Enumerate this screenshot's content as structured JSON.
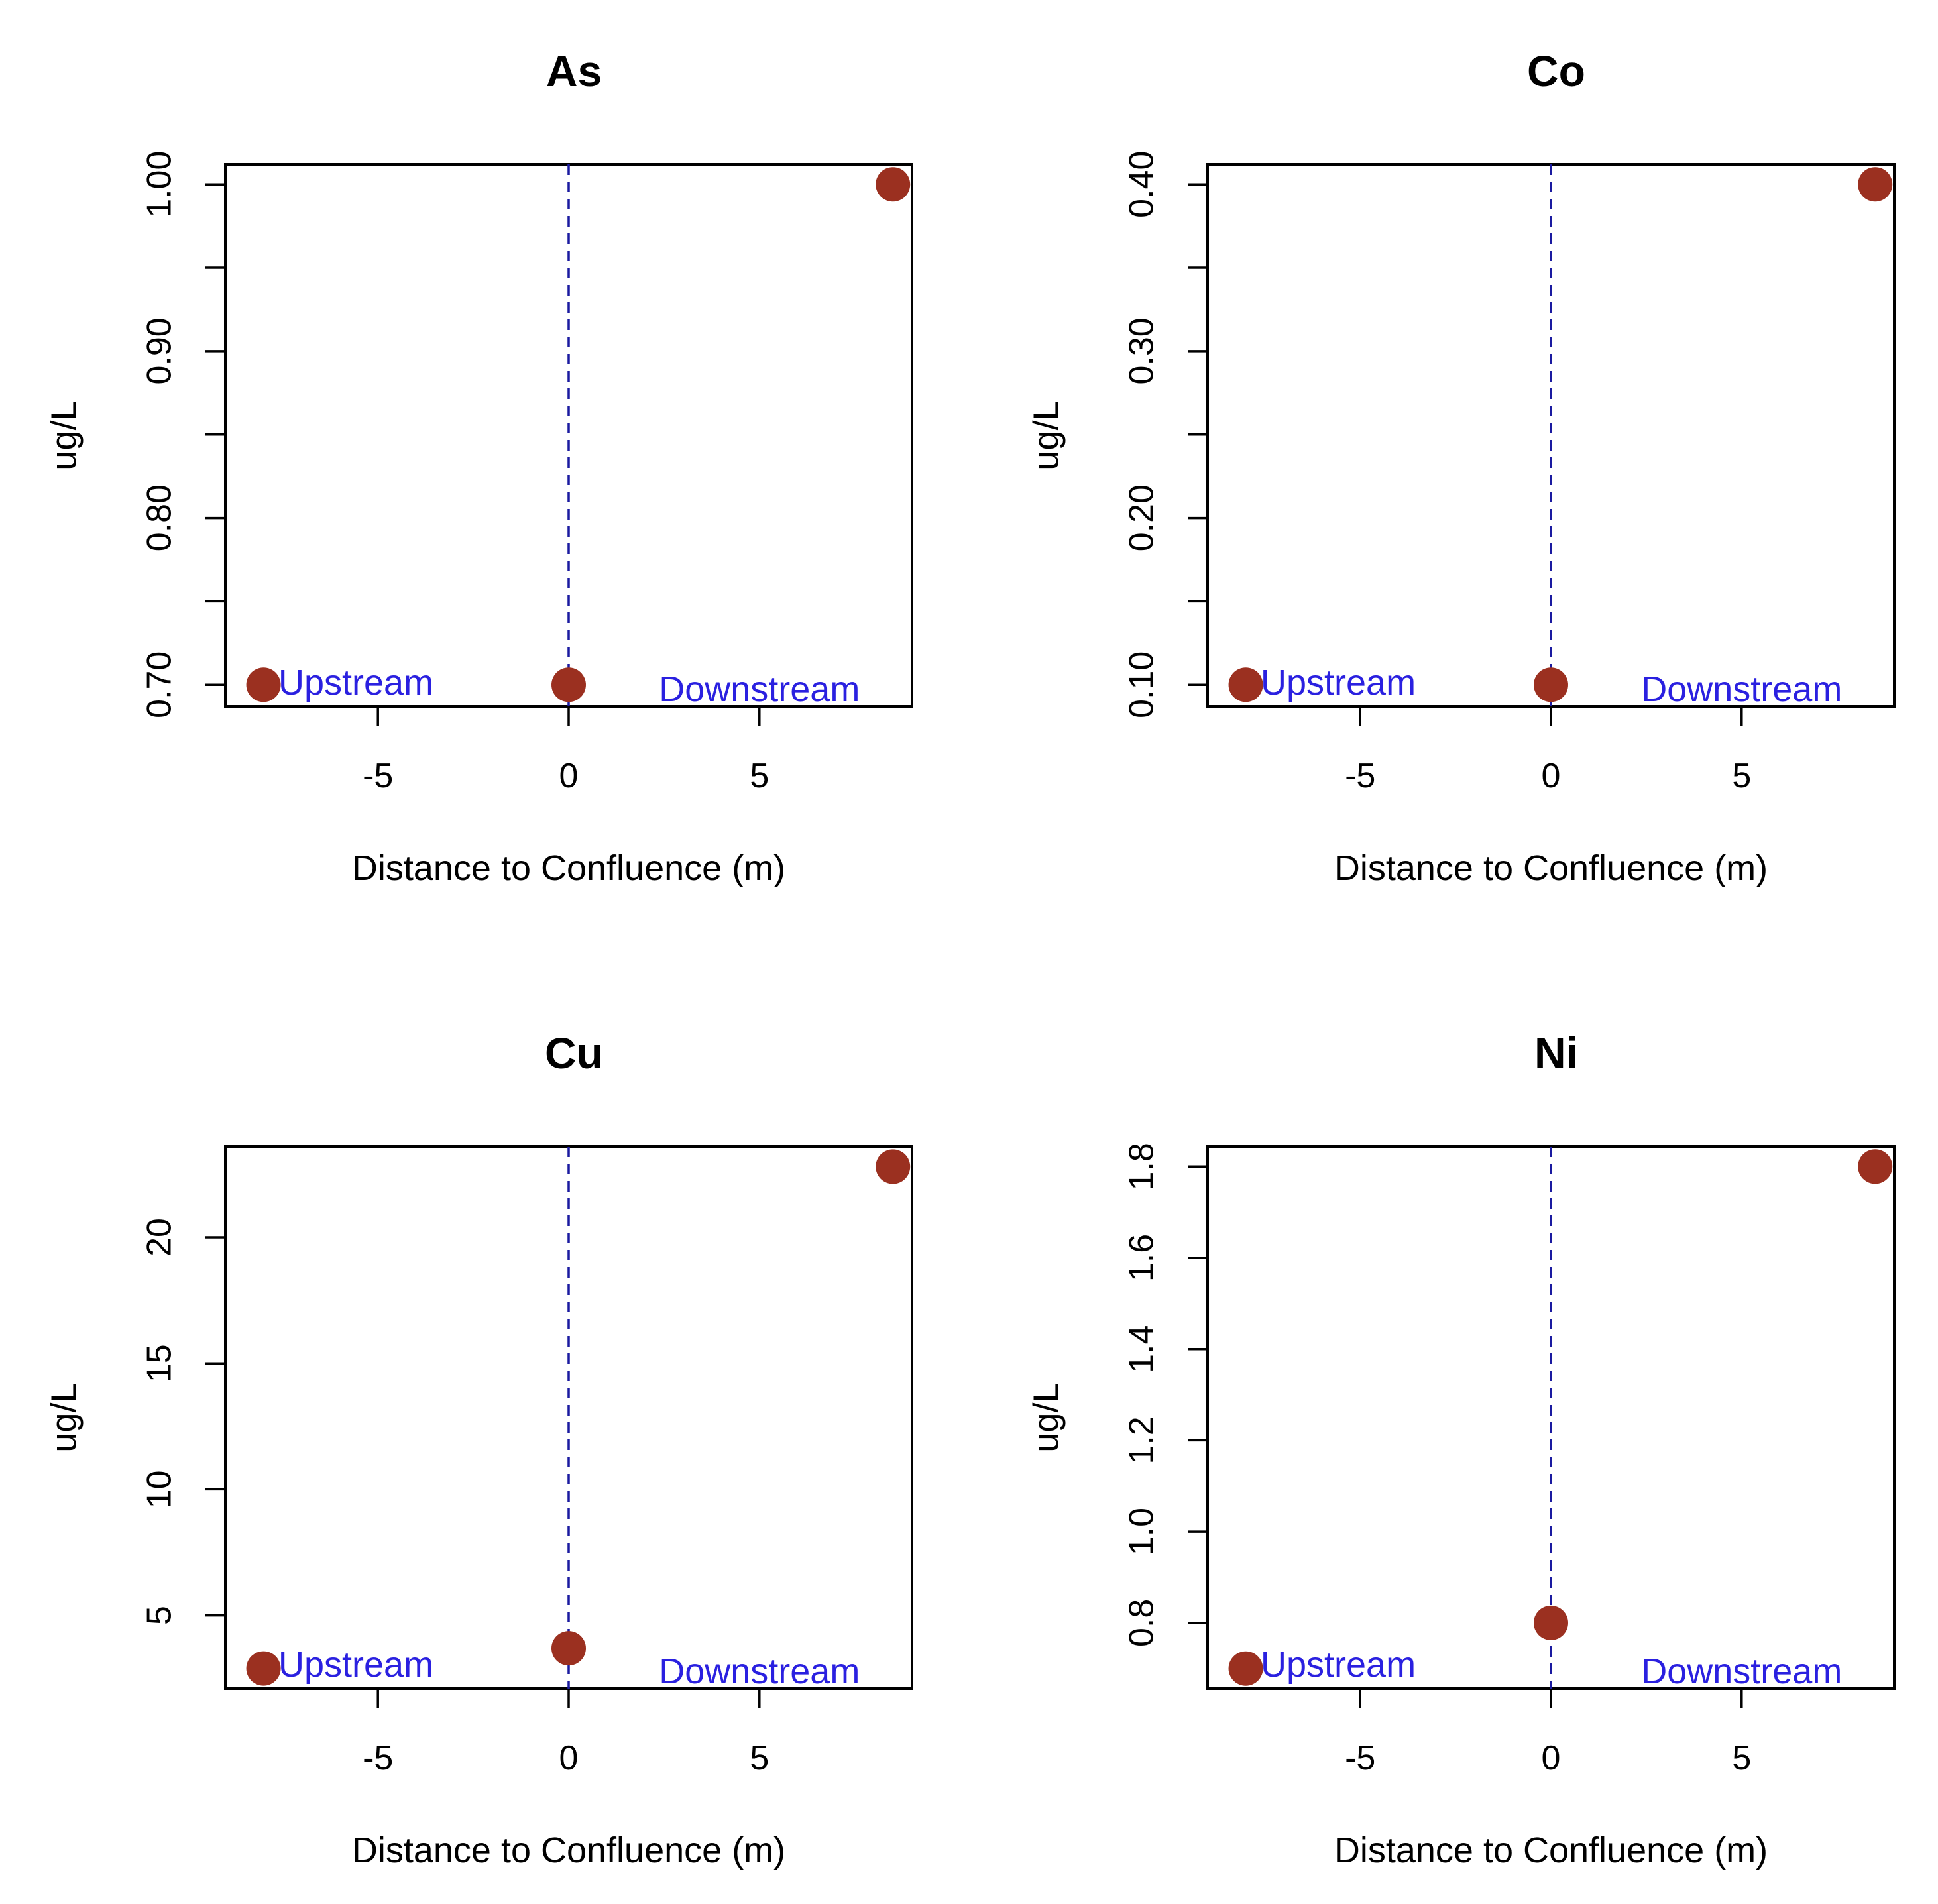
{
  "chart_data": [
    {
      "type": "scatter",
      "title": "As",
      "xlabel": "Distance to Confluence (m)",
      "ylabel": "ug/L",
      "xlim": [
        -9,
        9
      ],
      "ylim": [
        0.687,
        1.012
      ],
      "x_ticks": [
        "-5",
        "0",
        "5"
      ],
      "y_ticks": [
        "0.70",
        "0.80",
        "0.90",
        "1.00"
      ],
      "y_tick_values": [
        0.7,
        0.8,
        0.9,
        1.0
      ],
      "y_minor_ticks": [
        0.75,
        0.85,
        0.95
      ],
      "x": [
        -8,
        0,
        8.5
      ],
      "y": [
        0.7,
        0.7,
        1.0
      ],
      "confluence_line_x": 0,
      "annotations": {
        "upstream": "Upstream",
        "downstream": "Downstream"
      },
      "point_color": "#9b3020",
      "line_color": "#1a1aa0",
      "annotation_color": "#2a20e0"
    },
    {
      "type": "scatter",
      "title": "Co",
      "xlabel": "Distance to Confluence (m)",
      "ylabel": "ug/L",
      "xlim": [
        -9,
        9
      ],
      "ylim": [
        0.087,
        0.412
      ],
      "x_ticks": [
        "-5",
        "0",
        "5"
      ],
      "y_ticks": [
        "0.10",
        "0.20",
        "0.30",
        "0.40"
      ],
      "y_tick_values": [
        0.1,
        0.2,
        0.3,
        0.4
      ],
      "y_minor_ticks": [
        0.15,
        0.25,
        0.35
      ],
      "x": [
        -8,
        0,
        8.5
      ],
      "y": [
        0.1,
        0.1,
        0.4
      ],
      "confluence_line_x": 0,
      "annotations": {
        "upstream": "Upstream",
        "downstream": "Downstream"
      },
      "point_color": "#9b3020",
      "line_color": "#1a1aa0",
      "annotation_color": "#2a20e0"
    },
    {
      "type": "scatter",
      "title": "Cu",
      "xlabel": "Distance to Confluence (m)",
      "ylabel": "ug/L",
      "xlim": [
        -9,
        9
      ],
      "ylim": [
        2.1,
        23.6
      ],
      "x_ticks": [
        "-5",
        "0",
        "5"
      ],
      "y_ticks": [
        "5",
        "10",
        "15",
        "20"
      ],
      "y_tick_values": [
        5,
        10,
        15,
        20
      ],
      "y_minor_ticks": [],
      "x": [
        -8,
        0,
        8.5
      ],
      "y": [
        2.9,
        3.7,
        22.8
      ],
      "confluence_line_x": 0,
      "annotations": {
        "upstream": "Upstream",
        "downstream": "Downstream"
      },
      "point_color": "#9b3020",
      "line_color": "#1a1aa0",
      "annotation_color": "#2a20e0"
    },
    {
      "type": "scatter",
      "title": "Ni",
      "xlabel": "Distance to Confluence (m)",
      "ylabel": "ug/L",
      "xlim": [
        -9,
        9
      ],
      "ylim": [
        0.656,
        1.844
      ],
      "x_ticks": [
        "-5",
        "0",
        "5"
      ],
      "y_ticks": [
        "0.8",
        "1.0",
        "1.2",
        "1.4",
        "1.6",
        "1.8"
      ],
      "y_tick_values": [
        0.8,
        1.0,
        1.2,
        1.4,
        1.6,
        1.8
      ],
      "y_minor_ticks": [],
      "x": [
        -8,
        0,
        8.5
      ],
      "y": [
        0.7,
        0.8,
        1.8
      ],
      "confluence_line_x": 0,
      "annotations": {
        "upstream": "Upstream",
        "downstream": "Downstream"
      },
      "point_color": "#9b3020",
      "line_color": "#1a1aa0",
      "annotation_color": "#2a20e0"
    }
  ]
}
